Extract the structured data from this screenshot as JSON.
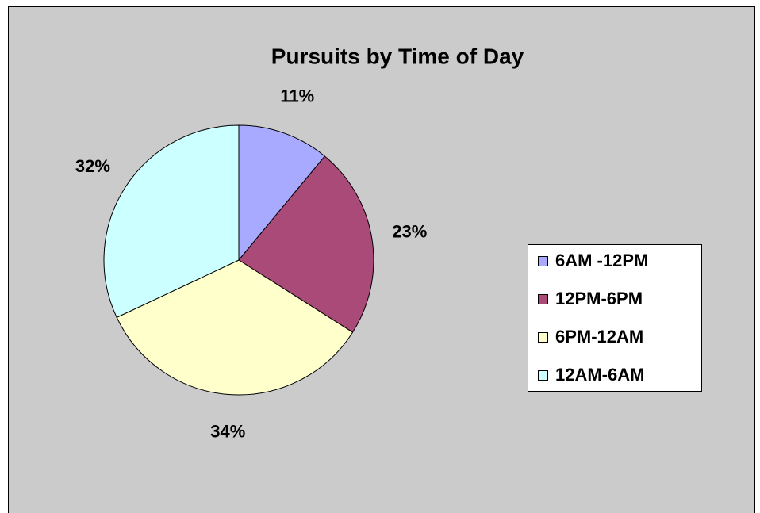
{
  "chart_data": {
    "type": "pie",
    "title": "Pursuits by Time of Day",
    "categories": [
      "6AM -12PM",
      "12PM-6PM",
      "6PM-12AM",
      "12AM-6AM"
    ],
    "values": [
      11,
      23,
      34,
      32
    ],
    "value_labels": [
      "11%",
      "23%",
      "34%",
      "32%"
    ],
    "colors": [
      "#a8aaff",
      "#a94a78",
      "#ffffcc",
      "#ccffff"
    ],
    "legend": "right"
  }
}
